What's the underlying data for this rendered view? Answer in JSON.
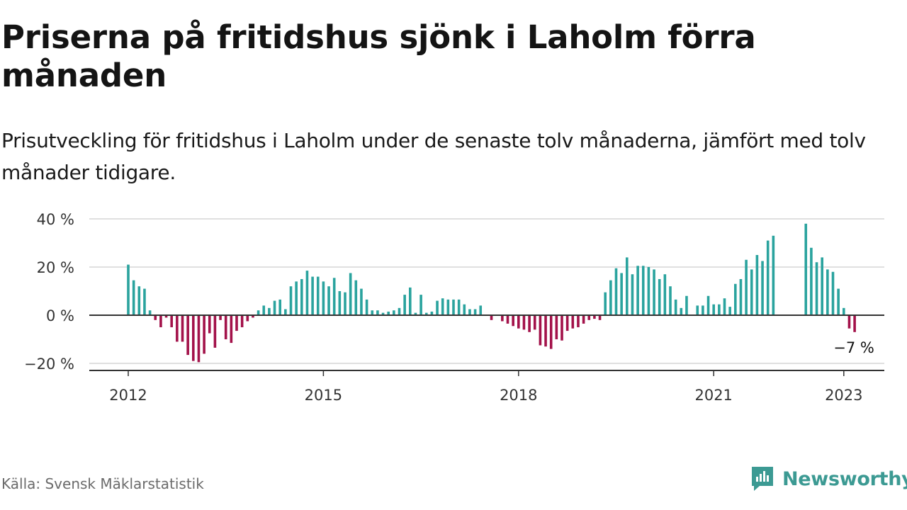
{
  "title": "Priserna på fritidshus sjönk i Laholm förra månaden",
  "subtitle": "Prisutveckling för fritidshus i Laholm under de senaste tolv månaderna, jämfört med tolv månader tidigare.",
  "source": "Källa: Svensk Mäklarstatistik",
  "brand": {
    "name": "Newsworthy",
    "icon": "newsworthy-logo-icon"
  },
  "colors": {
    "positive": "#2aa39e",
    "negative": "#a3124a",
    "grid": "#d6d6d6",
    "zero_line": "#333333",
    "brand": "#3c9a93"
  },
  "chart_data": {
    "type": "bar",
    "title": "",
    "xlabel": "",
    "ylabel": "",
    "unit": "%",
    "x_start": "2012-01",
    "x_ticks": [
      "2012",
      "2015",
      "2018",
      "2021",
      "2023"
    ],
    "y_ticks": [
      "40 %",
      "20 %",
      "0 %",
      "−20 %"
    ],
    "ylim": [
      -22,
      42
    ],
    "grid": true,
    "last_value_label": "−7 %",
    "values": [
      21,
      14.5,
      12,
      11,
      2,
      -2,
      -5,
      -1,
      -5,
      -11,
      -11,
      -16.5,
      -19,
      -19.5,
      -16,
      -7.5,
      -13.5,
      -2,
      -10,
      -11.5,
      -6.5,
      -5,
      -2.5,
      -1,
      2,
      4,
      3,
      6,
      6.5,
      2.5,
      12,
      14,
      15,
      18.5,
      16,
      16,
      14,
      12,
      15.5,
      10,
      9.5,
      17.5,
      14.5,
      11,
      6.5,
      2,
      2,
      1,
      1.5,
      2,
      3,
      8.5,
      11.5,
      1,
      8.5,
      1,
      1.5,
      6,
      7,
      6.5,
      6.5,
      6.5,
      4.5,
      2.5,
      2.5,
      4,
      0,
      -2,
      0,
      -2.5,
      -3.5,
      -4.5,
      -5.5,
      -6,
      -7,
      -6,
      -12.5,
      -13,
      -14,
      -10,
      -10.5,
      -6.5,
      -5.5,
      -5,
      -3.5,
      -2,
      -1.5,
      -2,
      9.5,
      14.5,
      19.5,
      17.5,
      24,
      17,
      20.5,
      20.5,
      20,
      19,
      15,
      17,
      12,
      6.5,
      3,
      8,
      0,
      4,
      4,
      8,
      4.5,
      4.5,
      7,
      3.5,
      13,
      15,
      23,
      19,
      25,
      22.5,
      31,
      33,
      null,
      null,
      null,
      null,
      null,
      38,
      28,
      22,
      24,
      19,
      18,
      11,
      3,
      -5.5,
      -7
    ]
  }
}
